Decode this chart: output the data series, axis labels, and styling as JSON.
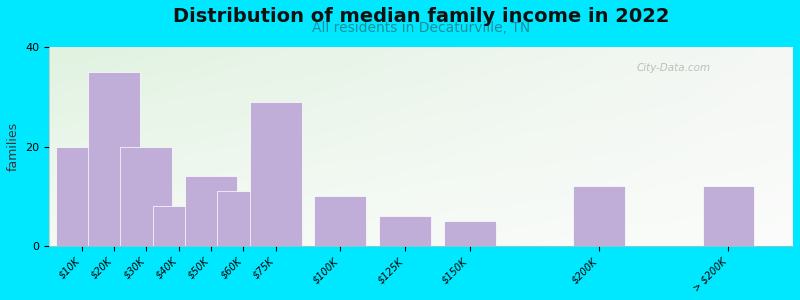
{
  "title": "Distribution of median family income in 2022",
  "subtitle": "All residents in Decaturville, TN",
  "ylabel": "families",
  "categories": [
    "$10K",
    "$20K",
    "$30K",
    "$40K",
    "$50K",
    "$60K",
    "$75K",
    "$100K",
    "$125K",
    "$150K",
    "$200K",
    "> $200K"
  ],
  "x_positions": [
    0,
    1,
    2,
    3,
    4,
    5,
    6,
    8,
    10,
    12,
    16,
    20
  ],
  "values": [
    20,
    35,
    20,
    8,
    14,
    11,
    29,
    10,
    6,
    5,
    12,
    12
  ],
  "bar_color": "#c0aed8",
  "bar_edgecolor": "#ffffff",
  "bar_width": 1.6,
  "ylim": [
    0,
    40
  ],
  "yticks": [
    0,
    20,
    40
  ],
  "xlim_min": -1,
  "xlim_max": 22,
  "bg_outer": "#00e8ff",
  "title_fontsize": 14,
  "subtitle_fontsize": 10,
  "subtitle_color": "#1a8fa0",
  "ylabel_fontsize": 9,
  "watermark": "City-Data.com",
  "tick_fontsize": 7,
  "ylabel_color": "#333333"
}
